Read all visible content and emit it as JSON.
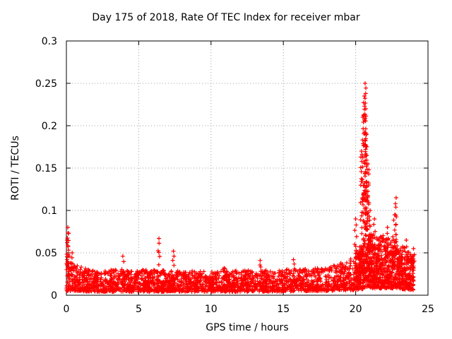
{
  "chart_data": {
    "type": "scatter",
    "title": "Day 175 of 2018, Rate Of TEC Index for receiver mbar",
    "xlabel": "GPS time / hours",
    "ylabel": "ROTI / TECUs",
    "xlim": [
      0,
      25
    ],
    "ylim": [
      0,
      0.3
    ],
    "xticks": [
      "0",
      "5",
      "10",
      "15",
      "20",
      "25"
    ],
    "yticks": [
      "0",
      "0.05",
      "0.1",
      "0.15",
      "0.2",
      "0.25",
      "0.3"
    ],
    "grid": true,
    "marker": "+",
    "color": "#ff0000",
    "series": [
      {
        "name": "ROTI",
        "baseline_envelope": [
          {
            "x": 0.0,
            "low": 0.005,
            "high": 0.04
          },
          {
            "x": 2.0,
            "low": 0.004,
            "high": 0.03
          },
          {
            "x": 6.0,
            "low": 0.004,
            "high": 0.03
          },
          {
            "x": 10.0,
            "low": 0.004,
            "high": 0.028
          },
          {
            "x": 14.0,
            "low": 0.004,
            "high": 0.03
          },
          {
            "x": 18.0,
            "low": 0.005,
            "high": 0.032
          },
          {
            "x": 20.0,
            "low": 0.006,
            "high": 0.045
          },
          {
            "x": 21.0,
            "low": 0.008,
            "high": 0.06
          },
          {
            "x": 22.5,
            "low": 0.008,
            "high": 0.06
          },
          {
            "x": 24.0,
            "low": 0.006,
            "high": 0.04
          }
        ],
        "peaks": [
          {
            "x": 0.1,
            "y": 0.08
          },
          {
            "x": 0.15,
            "y": 0.073
          },
          {
            "x": 0.05,
            "y": 0.065
          },
          {
            "x": 0.4,
            "y": 0.05
          },
          {
            "x": 3.9,
            "y": 0.046
          },
          {
            "x": 6.4,
            "y": 0.067
          },
          {
            "x": 7.4,
            "y": 0.052
          },
          {
            "x": 10.9,
            "y": 0.032
          },
          {
            "x": 13.4,
            "y": 0.041
          },
          {
            "x": 15.7,
            "y": 0.042
          },
          {
            "x": 20.0,
            "y": 0.09
          },
          {
            "x": 20.4,
            "y": 0.17
          },
          {
            "x": 20.5,
            "y": 0.21
          },
          {
            "x": 20.6,
            "y": 0.235
          },
          {
            "x": 20.65,
            "y": 0.25
          },
          {
            "x": 20.7,
            "y": 0.22
          },
          {
            "x": 20.75,
            "y": 0.19
          },
          {
            "x": 20.85,
            "y": 0.155
          },
          {
            "x": 20.9,
            "y": 0.13
          },
          {
            "x": 21.0,
            "y": 0.1
          },
          {
            "x": 21.3,
            "y": 0.09
          },
          {
            "x": 22.2,
            "y": 0.08
          },
          {
            "x": 22.7,
            "y": 0.095
          },
          {
            "x": 22.8,
            "y": 0.115
          },
          {
            "x": 23.5,
            "y": 0.065
          },
          {
            "x": 24.0,
            "y": 0.055
          }
        ]
      }
    ]
  }
}
